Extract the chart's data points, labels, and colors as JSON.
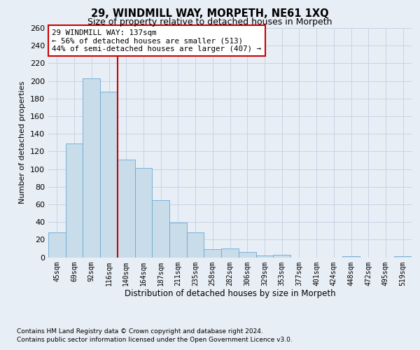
{
  "title1": "29, WINDMILL WAY, MORPETH, NE61 1XQ",
  "title2": "Size of property relative to detached houses in Morpeth",
  "xlabel": "Distribution of detached houses by size in Morpeth",
  "ylabel": "Number of detached properties",
  "categories": [
    "45sqm",
    "69sqm",
    "92sqm",
    "116sqm",
    "140sqm",
    "164sqm",
    "187sqm",
    "211sqm",
    "235sqm",
    "258sqm",
    "282sqm",
    "306sqm",
    "329sqm",
    "353sqm",
    "377sqm",
    "401sqm",
    "424sqm",
    "448sqm",
    "472sqm",
    "495sqm",
    "519sqm"
  ],
  "values": [
    28,
    129,
    203,
    188,
    111,
    101,
    65,
    39,
    28,
    9,
    10,
    6,
    2,
    3,
    0,
    0,
    0,
    1,
    0,
    0,
    1
  ],
  "bar_color": "#c9dcea",
  "bar_edge_color": "#6aaad4",
  "grid_color": "#c8d4e4",
  "annotation_line1": "29 WINDMILL WAY: 137sqm",
  "annotation_line2": "← 56% of detached houses are smaller (513)",
  "annotation_line3": "44% of semi-detached houses are larger (407) →",
  "annotation_box_color": "#ffffff",
  "annotation_box_edge": "#cc0000",
  "vline_color": "#cc0000",
  "ylim": [
    0,
    260
  ],
  "yticks": [
    0,
    20,
    40,
    60,
    80,
    100,
    120,
    140,
    160,
    180,
    200,
    220,
    240,
    260
  ],
  "footnote1": "Contains HM Land Registry data © Crown copyright and database right 2024.",
  "footnote2": "Contains public sector information licensed under the Open Government Licence v3.0.",
  "bg_color": "#e8eef5",
  "plot_bg_color": "#e8eef5"
}
